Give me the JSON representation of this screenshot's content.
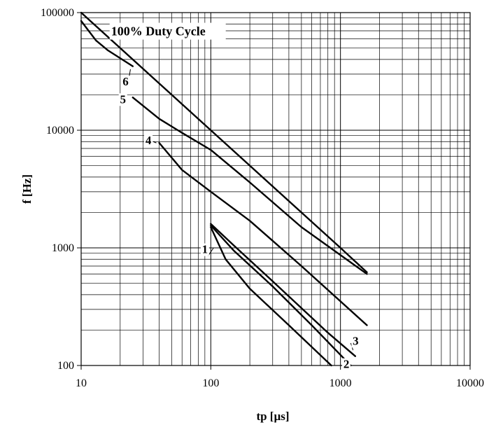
{
  "chart_data": {
    "type": "line",
    "xlabel": "tp [µs]",
    "ylabel": "f [Hz]",
    "x_scale": "log",
    "y_scale": "log",
    "xlim": [
      10,
      10000
    ],
    "ylim": [
      100,
      100000
    ],
    "x_ticks": [
      "10",
      "100",
      "1000",
      "10000"
    ],
    "y_ticks": [
      "100",
      "1000",
      "10000",
      "100000"
    ],
    "grid": true,
    "annotation": "100% Duty Cycle",
    "series": [
      {
        "name": "1",
        "x": [
          100,
          130,
          200,
          400,
          850
        ],
        "y": [
          1500,
          800,
          450,
          220,
          100
        ]
      },
      {
        "name": "2",
        "x": [
          100,
          150,
          300,
          600,
          1200
        ],
        "y": [
          1550,
          950,
          470,
          220,
          100
        ]
      },
      {
        "name": "3",
        "x": [
          100,
          150,
          300,
          800,
          1300
        ],
        "y": [
          1600,
          1050,
          520,
          190,
          120
        ]
      },
      {
        "name": "4",
        "x": [
          40,
          60,
          100,
          200,
          500,
          1600
        ],
        "y": [
          7800,
          4600,
          3000,
          1700,
          700,
          220
        ]
      },
      {
        "name": "5",
        "x": [
          25,
          40,
          60,
          100,
          200,
          500,
          1600
        ],
        "y": [
          19000,
          12500,
          9500,
          6800,
          3600,
          1500,
          600
        ]
      },
      {
        "name": "6",
        "x": [
          10,
          13,
          16,
          20,
          25
        ],
        "y": [
          85000,
          58000,
          48000,
          41000,
          35000
        ]
      },
      {
        "name": "100% Duty Cycle",
        "x": [
          10,
          100,
          1000,
          1600
        ],
        "y": [
          100000,
          10000,
          1000,
          620
        ]
      }
    ]
  }
}
